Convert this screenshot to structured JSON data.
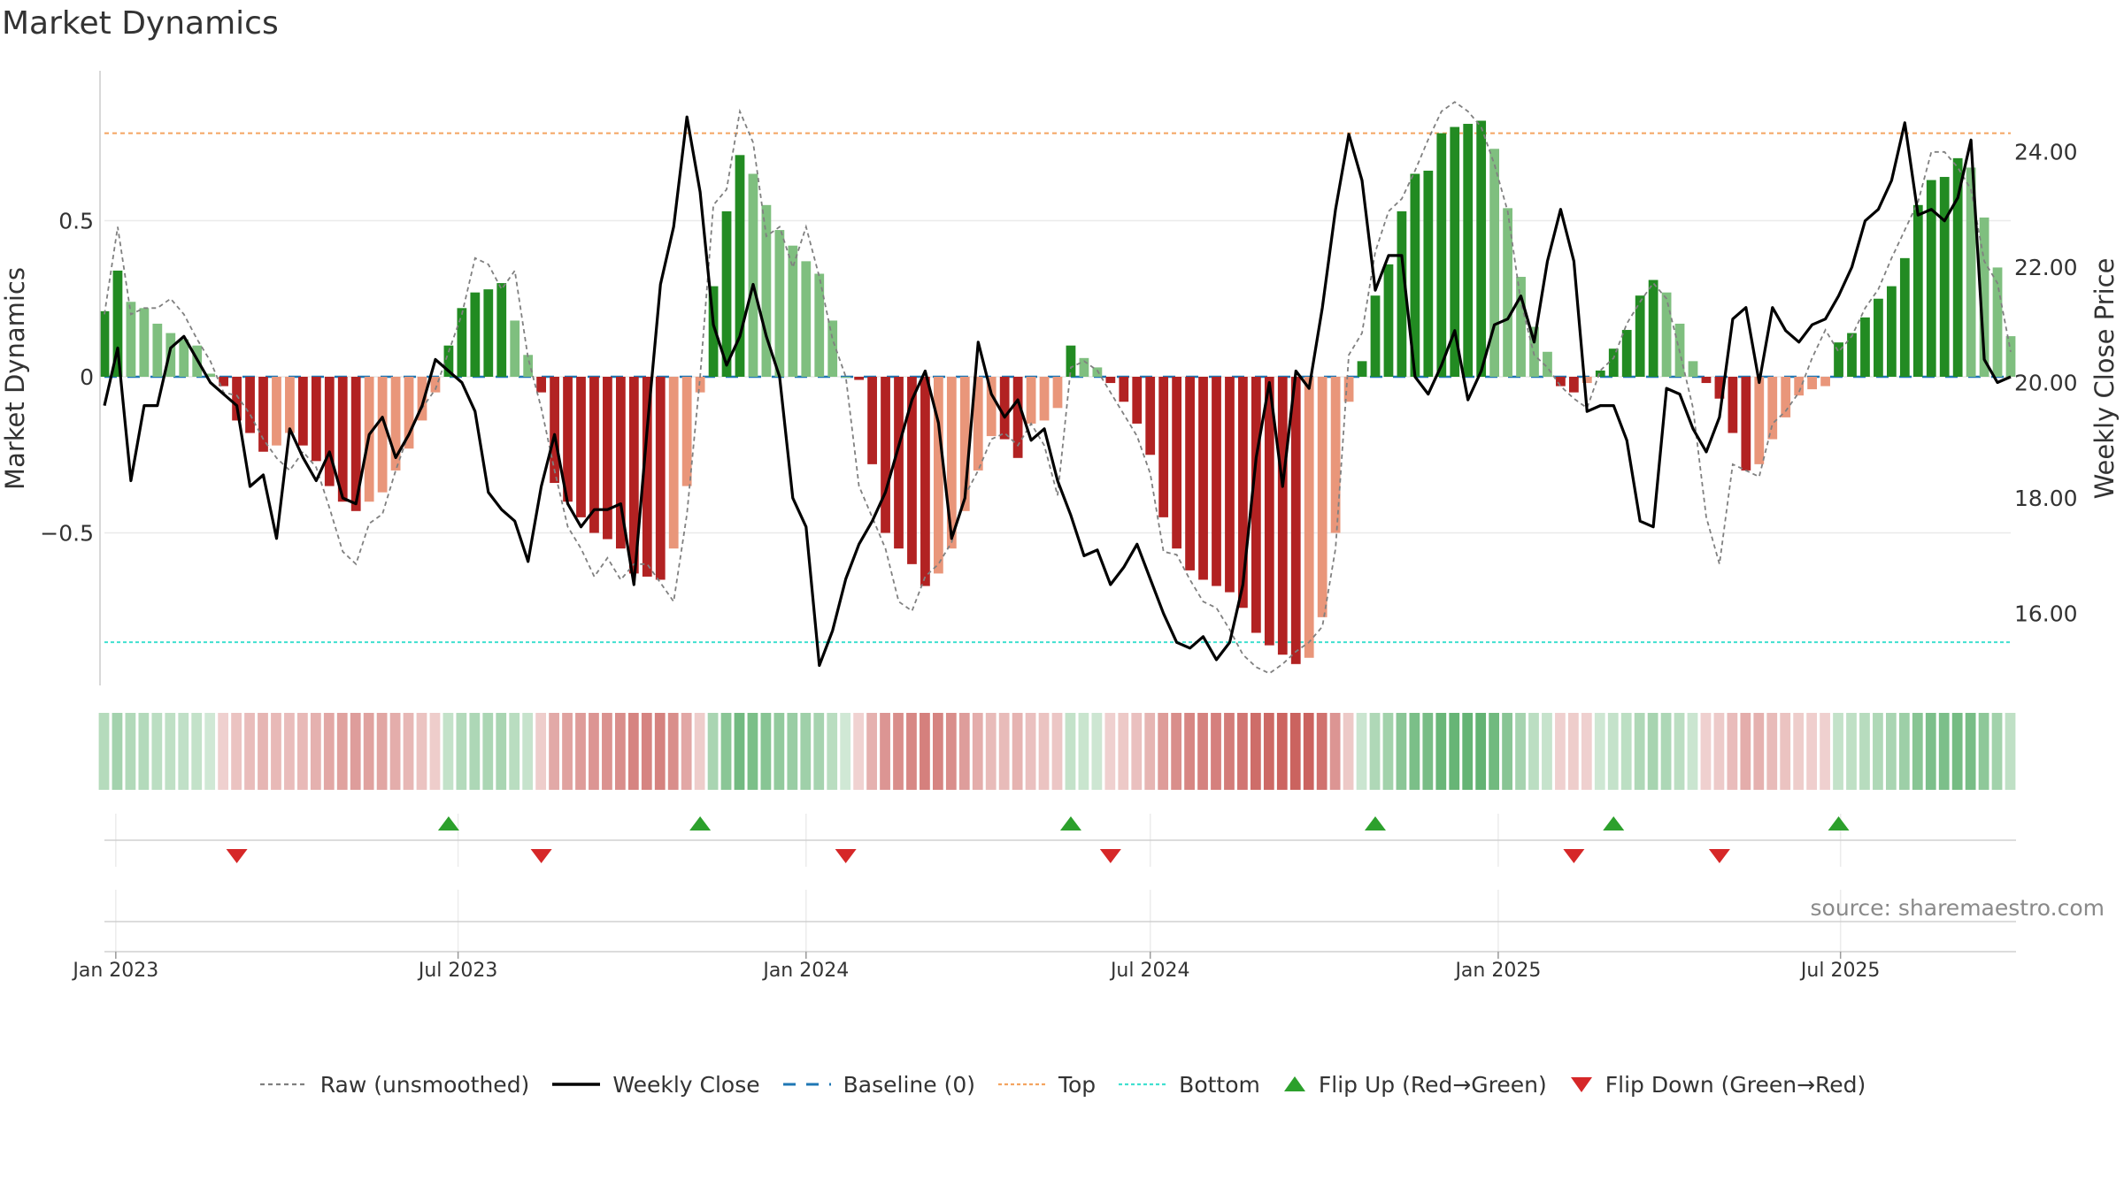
{
  "title": "Market Dynamics",
  "source": "source: sharemaestro.com",
  "colors": {
    "strong_green": "#228b22",
    "light_green": "#7fbf7f",
    "strong_red": "#b22222",
    "light_red": "#e9967a",
    "baseline": "#1f77b4",
    "top": "#f4a460",
    "bottom": "#40e0d0",
    "flip_up": "#2ca02c",
    "flip_down": "#d62728",
    "close_line": "#000000",
    "raw_line": "#808080"
  },
  "legend": [
    {
      "label": "Raw (unsmoothed)",
      "style": "raw"
    },
    {
      "label": "Weekly Close",
      "style": "close"
    },
    {
      "label": "Baseline (0)",
      "style": "baseline"
    },
    {
      "label": "Top",
      "style": "top"
    },
    {
      "label": "Bottom",
      "style": "bottom"
    },
    {
      "label": "Flip Up (Red→Green)",
      "style": "flip_up"
    },
    {
      "label": "Flip Down (Green→Red)",
      "style": "flip_down"
    }
  ],
  "chart_data": {
    "type": "bar",
    "title": "Market Dynamics",
    "ylabel": "Market Dynamics",
    "y2label": "Weekly Close Price",
    "ylim": [
      -0.98,
      0.98
    ],
    "y2lim": [
      14.8,
      25.4
    ],
    "yticks": [
      {
        "value": 0.5,
        "label": "0.5"
      },
      {
        "value": 0,
        "label": "0"
      },
      {
        "value": -0.5,
        "label": "−0.5"
      }
    ],
    "y2ticks": [
      {
        "value": 24,
        "label": "24.00"
      },
      {
        "value": 22,
        "label": "22.00"
      },
      {
        "value": 20,
        "label": "20.00"
      },
      {
        "value": 18,
        "label": "18.00"
      },
      {
        "value": 16,
        "label": "16.00"
      }
    ],
    "xlim": [
      "2022-12-26",
      "2025-09-29"
    ],
    "xticks": [
      {
        "date": "2023-01-01",
        "label": "Jan 2023"
      },
      {
        "date": "2023-07-01",
        "label": "Jul 2023"
      },
      {
        "date": "2024-01-01",
        "label": "Jan 2024"
      },
      {
        "date": "2024-07-01",
        "label": "Jul 2024"
      },
      {
        "date": "2025-01-01",
        "label": "Jan 2025"
      },
      {
        "date": "2025-07-01",
        "label": "Jul 2025"
      }
    ],
    "first_week": "2022-12-26",
    "top_level": 0.78,
    "bottom_level": -0.85,
    "baseline": 0,
    "grid": true,
    "legend_position": "bottom",
    "momentum": [
      0.21,
      0.34,
      0.24,
      0.22,
      0.17,
      0.14,
      0.12,
      0.1,
      0.01,
      -0.03,
      -0.14,
      -0.18,
      -0.24,
      -0.22,
      -0.18,
      -0.22,
      -0.27,
      -0.35,
      -0.4,
      -0.43,
      -0.4,
      -0.37,
      -0.3,
      -0.23,
      -0.14,
      -0.05,
      0.1,
      0.22,
      0.27,
      0.28,
      0.3,
      0.18,
      0.07,
      -0.05,
      -0.34,
      -0.4,
      -0.45,
      -0.5,
      -0.52,
      -0.55,
      -0.63,
      -0.64,
      -0.65,
      -0.55,
      -0.35,
      -0.05,
      0.29,
      0.53,
      0.71,
      0.65,
      0.55,
      0.47,
      0.42,
      0.37,
      0.33,
      0.18,
      0,
      -0.01,
      -0.28,
      -0.5,
      -0.55,
      -0.6,
      -0.67,
      -0.63,
      -0.55,
      -0.43,
      -0.3,
      -0.19,
      -0.2,
      -0.26,
      -0.15,
      -0.14,
      -0.1,
      0.1,
      0.06,
      0.03,
      -0.02,
      -0.08,
      -0.15,
      -0.25,
      -0.45,
      -0.55,
      -0.62,
      -0.65,
      -0.67,
      -0.69,
      -0.74,
      -0.82,
      -0.86,
      -0.89,
      -0.92,
      -0.9,
      -0.77,
      -0.5,
      -0.08,
      0.05,
      0.26,
      0.36,
      0.53,
      0.65,
      0.66,
      0.78,
      0.8,
      0.81,
      0.82,
      0.73,
      0.54,
      0.32,
      0.16,
      0.08,
      -0.03,
      -0.05,
      -0.02,
      0.02,
      0.09,
      0.15,
      0.26,
      0.31,
      0.27,
      0.17,
      0.05,
      -0.02,
      -0.07,
      -0.18,
      -0.3,
      -0.28,
      -0.2,
      -0.13,
      -0.06,
      -0.04,
      -0.03,
      0.11,
      0.14,
      0.19,
      0.25,
      0.29,
      0.38,
      0.55,
      0.63,
      0.64,
      0.7,
      0.67,
      0.51,
      0.35,
      0.13
    ],
    "weekly_close": [
      19.6,
      20.6,
      18.3,
      19.6,
      19.6,
      20.6,
      20.8,
      20.4,
      20.0,
      19.8,
      19.6,
      18.2,
      18.4,
      17.3,
      19.2,
      18.7,
      18.3,
      18.8,
      18.0,
      17.9,
      19.1,
      19.4,
      18.7,
      19.1,
      19.6,
      20.4,
      20.2,
      20.0,
      19.5,
      18.1,
      17.8,
      17.6,
      16.9,
      18.2,
      19.1,
      17.9,
      17.5,
      17.8,
      17.8,
      17.9,
      16.5,
      19.2,
      21.7,
      22.7,
      24.6,
      23.3,
      21.0,
      20.3,
      20.8,
      21.7,
      20.8,
      20.1,
      18.0,
      17.5,
      15.1,
      15.7,
      16.6,
      17.2,
      17.6,
      18.1,
      18.9,
      19.7,
      20.2,
      19.3,
      17.3,
      18.0,
      20.7,
      19.8,
      19.4,
      19.7,
      19.0,
      19.2,
      18.3,
      17.7,
      17.0,
      17.1,
      16.5,
      16.8,
      17.2,
      16.6,
      16.0,
      15.5,
      15.4,
      15.6,
      15.2,
      15.5,
      16.5,
      18.7,
      20.0,
      18.2,
      20.2,
      19.9,
      21.3,
      23.0,
      24.3,
      23.5,
      21.6,
      22.2,
      22.2,
      20.1,
      19.8,
      20.3,
      20.9,
      19.7,
      20.2,
      21.0,
      21.1,
      21.5,
      20.7,
      22.1,
      23.0,
      22.1,
      19.5,
      19.6,
      19.6,
      19.0,
      17.6,
      17.5,
      19.9,
      19.8,
      19.2,
      18.8,
      19.4,
      21.1,
      21.3,
      20.0,
      21.3,
      20.9,
      20.7,
      21.0,
      21.1,
      21.5,
      22.0,
      22.8,
      23.0,
      23.5,
      24.5,
      22.9,
      23.0,
      22.8,
      23.2,
      24.2,
      20.4,
      20.0,
      20.1
    ],
    "raw": [
      0.2,
      0.48,
      0.2,
      0.22,
      0.22,
      0.25,
      0.2,
      0.12,
      0.05,
      -0.05,
      -0.06,
      -0.12,
      -0.2,
      -0.26,
      -0.3,
      -0.24,
      -0.29,
      -0.42,
      -0.56,
      -0.6,
      -0.47,
      -0.44,
      -0.3,
      -0.18,
      -0.1,
      -0.04,
      0.08,
      0.2,
      0.38,
      0.36,
      0.28,
      0.34,
      0.06,
      -0.1,
      -0.3,
      -0.48,
      -0.55,
      -0.64,
      -0.58,
      -0.65,
      -0.6,
      -0.6,
      -0.66,
      -0.72,
      -0.44,
      0,
      0.55,
      0.6,
      0.85,
      0.75,
      0.45,
      0.48,
      0.35,
      0.48,
      0.32,
      0.12,
      0,
      -0.35,
      -0.45,
      -0.55,
      -0.72,
      -0.75,
      -0.64,
      -0.6,
      -0.53,
      -0.38,
      -0.3,
      -0.2,
      -0.18,
      -0.22,
      -0.15,
      -0.22,
      -0.38,
      0.03,
      0.05,
      0.02,
      -0.05,
      -0.12,
      -0.19,
      -0.31,
      -0.56,
      -0.57,
      -0.65,
      -0.72,
      -0.74,
      -0.81,
      -0.89,
      -0.93,
      -0.95,
      -0.92,
      -0.88,
      -0.85,
      -0.8,
      -0.55,
      0.07,
      0.14,
      0.4,
      0.53,
      0.57,
      0.66,
      0.76,
      0.85,
      0.88,
      0.85,
      0.8,
      0.68,
      0.53,
      0.24,
      0.07,
      0.03,
      -0.03,
      -0.07,
      -0.1,
      0.02,
      0.06,
      0.17,
      0.24,
      0.3,
      0.25,
      0.08,
      -0.1,
      -0.45,
      -0.6,
      -0.28,
      -0.3,
      -0.32,
      -0.15,
      -0.11,
      -0.05,
      0.06,
      0.15,
      0.08,
      0.13,
      0.22,
      0.28,
      0.38,
      0.47,
      0.56,
      0.72,
      0.72,
      0.67,
      0.6,
      0.37,
      0.3,
      0.08
    ],
    "flip_up": [
      "2023-06-26",
      "2023-11-06",
      "2024-05-20",
      "2024-10-28",
      "2025-03-03",
      "2025-06-30"
    ],
    "flip_down": [
      "2023-03-06",
      "2023-08-14",
      "2024-01-22",
      "2024-06-10",
      "2025-02-10",
      "2025-04-28"
    ]
  }
}
